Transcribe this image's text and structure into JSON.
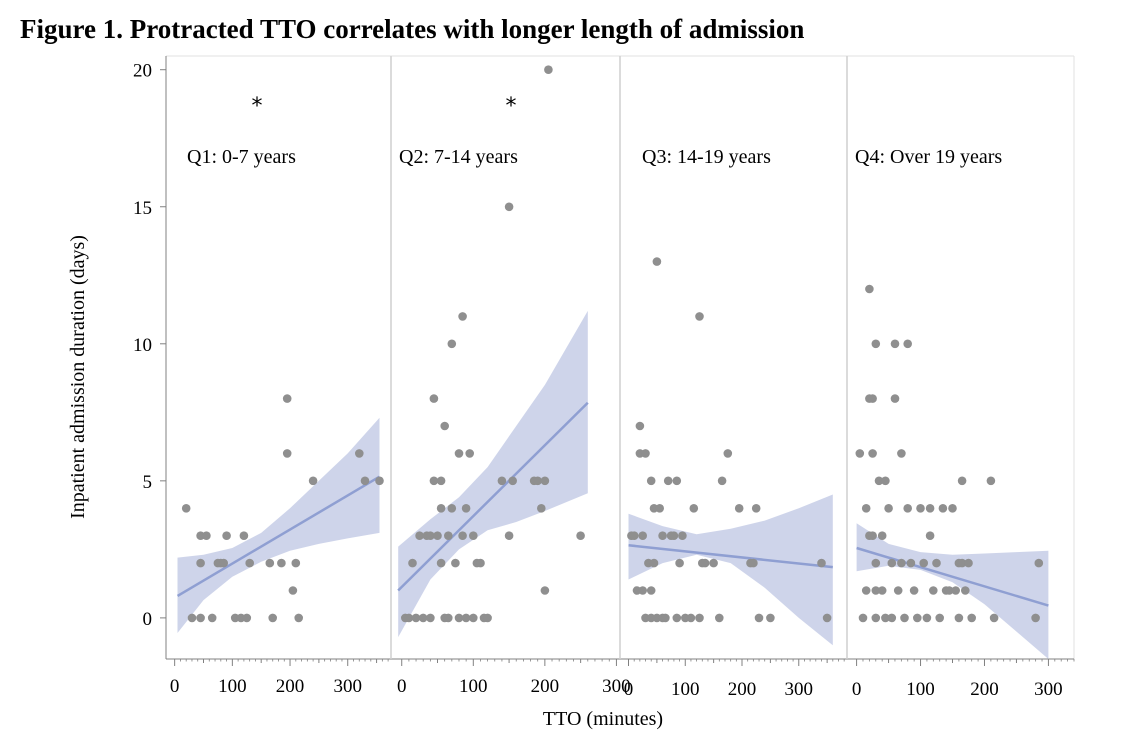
{
  "figure": {
    "title": "Figure 1. Protracted TTO correlates with longer length of admission"
  },
  "colors": {
    "point": "#8f8f8f",
    "fit_line": "#8f9fd2",
    "ci_band": "#c5cce6",
    "divider": "#cfcfcf",
    "axis": "#808080"
  },
  "chart_data": {
    "type": "scatter",
    "xlabel": "TTO (minutes)",
    "ylabel": "Inpatient admission duration (days)",
    "ylim": [
      -1.5,
      20.5
    ],
    "yticks": [
      0,
      5,
      10,
      15,
      20
    ],
    "grid": false,
    "panels": [
      {
        "label": "Q1: 0-7 years",
        "significance": "*",
        "xlim": [
          -15,
          375
        ],
        "xticks": [
          0,
          100,
          200,
          300
        ],
        "fit": {
          "x": [
            5,
            355
          ],
          "y": [
            0.8,
            5.15
          ]
        },
        "ci": {
          "x": [
            5,
            50,
            100,
            150,
            200,
            250,
            300,
            355
          ],
          "lower": [
            -0.55,
            0.65,
            1.5,
            2.05,
            2.45,
            2.7,
            2.9,
            3.1
          ],
          "upper": [
            2.2,
            2.3,
            2.55,
            3.1,
            4.0,
            5.0,
            6.0,
            7.3
          ]
        },
        "points": [
          [
            20,
            4
          ],
          [
            30,
            0
          ],
          [
            45,
            2
          ],
          [
            45,
            0
          ],
          [
            45,
            3
          ],
          [
            55,
            3
          ],
          [
            65,
            0
          ],
          [
            75,
            2
          ],
          [
            80,
            2
          ],
          [
            85,
            2
          ],
          [
            90,
            3
          ],
          [
            105,
            0
          ],
          [
            115,
            0
          ],
          [
            120,
            3
          ],
          [
            125,
            0
          ],
          [
            130,
            2
          ],
          [
            165,
            2
          ],
          [
            170,
            0
          ],
          [
            185,
            2
          ],
          [
            195,
            8
          ],
          [
            195,
            6
          ],
          [
            205,
            1
          ],
          [
            210,
            2
          ],
          [
            215,
            0
          ],
          [
            240,
            5
          ],
          [
            320,
            6
          ],
          [
            330,
            5
          ],
          [
            355,
            5
          ]
        ]
      },
      {
        "label": "Q2: 7-14 years",
        "significance": "*",
        "xlim": [
          -15,
          305
        ],
        "xticks": [
          0,
          100,
          200,
          300
        ],
        "fit": {
          "x": [
            -5,
            260
          ],
          "y": [
            1.0,
            7.85
          ]
        },
        "ci": {
          "x": [
            -5,
            40,
            80,
            120,
            160,
            200,
            260
          ],
          "lower": [
            -0.7,
            1.4,
            2.5,
            3.2,
            3.5,
            3.9,
            4.55
          ],
          "upper": [
            2.6,
            3.6,
            4.4,
            5.5,
            7.0,
            8.5,
            11.2
          ]
        },
        "points": [
          [
            5,
            0
          ],
          [
            10,
            0
          ],
          [
            15,
            2
          ],
          [
            20,
            0
          ],
          [
            25,
            3
          ],
          [
            30,
            0
          ],
          [
            35,
            3
          ],
          [
            40,
            3
          ],
          [
            45,
            5
          ],
          [
            50,
            3
          ],
          [
            40,
            0
          ],
          [
            45,
            8
          ],
          [
            55,
            5
          ],
          [
            60,
            0
          ],
          [
            55,
            4
          ],
          [
            55,
            2
          ],
          [
            60,
            7
          ],
          [
            65,
            3
          ],
          [
            65,
            0
          ],
          [
            70,
            10
          ],
          [
            70,
            4
          ],
          [
            75,
            2
          ],
          [
            80,
            0
          ],
          [
            80,
            6
          ],
          [
            85,
            11
          ],
          [
            85,
            3
          ],
          [
            90,
            0
          ],
          [
            90,
            4
          ],
          [
            95,
            6
          ],
          [
            100,
            3
          ],
          [
            100,
            0
          ],
          [
            105,
            2
          ],
          [
            110,
            2
          ],
          [
            115,
            0
          ],
          [
            120,
            0
          ],
          [
            140,
            5
          ],
          [
            150,
            3
          ],
          [
            150,
            15
          ],
          [
            155,
            5
          ],
          [
            185,
            5
          ],
          [
            190,
            5
          ],
          [
            195,
            4
          ],
          [
            200,
            1
          ],
          [
            200,
            5
          ],
          [
            205,
            20
          ],
          [
            250,
            3
          ]
        ]
      },
      {
        "label": "Q3: 14-19 years",
        "significance": "",
        "xlim": [
          -15,
          385
        ],
        "xticks": [
          0,
          100,
          200,
          300
        ],
        "fit": {
          "x": [
            0,
            360
          ],
          "y": [
            2.65,
            1.85
          ]
        },
        "ci": {
          "x": [
            0,
            60,
            120,
            180,
            240,
            300,
            360
          ],
          "lower": [
            1.4,
            2.0,
            2.3,
            2.0,
            1.1,
            0.0,
            -1.0
          ],
          "upper": [
            3.8,
            3.35,
            3.05,
            3.25,
            3.55,
            4.0,
            4.5
          ]
        },
        "points": [
          [
            5,
            3
          ],
          [
            10,
            3
          ],
          [
            15,
            1
          ],
          [
            20,
            7
          ],
          [
            20,
            6
          ],
          [
            25,
            1
          ],
          [
            25,
            3
          ],
          [
            30,
            0
          ],
          [
            30,
            6
          ],
          [
            35,
            2
          ],
          [
            40,
            5
          ],
          [
            40,
            1
          ],
          [
            40,
            0
          ],
          [
            45,
            2
          ],
          [
            45,
            4
          ],
          [
            50,
            0
          ],
          [
            50,
            13
          ],
          [
            55,
            4
          ],
          [
            60,
            0
          ],
          [
            60,
            3
          ],
          [
            65,
            0
          ],
          [
            70,
            5
          ],
          [
            75,
            3
          ],
          [
            80,
            3
          ],
          [
            85,
            0
          ],
          [
            85,
            5
          ],
          [
            90,
            2
          ],
          [
            95,
            3
          ],
          [
            100,
            0
          ],
          [
            110,
            0
          ],
          [
            115,
            4
          ],
          [
            125,
            0
          ],
          [
            125,
            11
          ],
          [
            130,
            2
          ],
          [
            135,
            2
          ],
          [
            150,
            2
          ],
          [
            160,
            0
          ],
          [
            165,
            5
          ],
          [
            175,
            6
          ],
          [
            195,
            4
          ],
          [
            215,
            2
          ],
          [
            220,
            2
          ],
          [
            225,
            4
          ],
          [
            230,
            0
          ],
          [
            250,
            0
          ],
          [
            340,
            2
          ],
          [
            350,
            0
          ]
        ]
      },
      {
        "label": "Q4: Over 19 years",
        "significance": "",
        "xlim": [
          -15,
          340
        ],
        "xticks": [
          0,
          100,
          200,
          300
        ],
        "fit": {
          "x": [
            0,
            300
          ],
          "y": [
            2.55,
            0.45
          ]
        },
        "ci": {
          "x": [
            0,
            50,
            100,
            150,
            200,
            250,
            300
          ],
          "lower": [
            1.7,
            1.9,
            1.75,
            1.3,
            0.5,
            -0.5,
            -1.5
          ],
          "upper": [
            3.45,
            2.7,
            2.4,
            2.3,
            2.35,
            2.4,
            2.45
          ]
        },
        "points": [
          [
            5,
            6
          ],
          [
            10,
            0
          ],
          [
            15,
            4
          ],
          [
            15,
            1
          ],
          [
            20,
            12
          ],
          [
            20,
            3
          ],
          [
            20,
            8
          ],
          [
            25,
            8
          ],
          [
            25,
            6
          ],
          [
            25,
            3
          ],
          [
            30,
            10
          ],
          [
            30,
            2
          ],
          [
            30,
            1
          ],
          [
            30,
            0
          ],
          [
            35,
            5
          ],
          [
            40,
            3
          ],
          [
            40,
            1
          ],
          [
            45,
            5
          ],
          [
            45,
            0
          ],
          [
            50,
            4
          ],
          [
            55,
            2
          ],
          [
            55,
            0
          ],
          [
            60,
            10
          ],
          [
            60,
            8
          ],
          [
            65,
            1
          ],
          [
            70,
            6
          ],
          [
            70,
            2
          ],
          [
            75,
            0
          ],
          [
            80,
            10
          ],
          [
            80,
            4
          ],
          [
            85,
            2
          ],
          [
            90,
            1
          ],
          [
            95,
            0
          ],
          [
            100,
            4
          ],
          [
            105,
            2
          ],
          [
            110,
            0
          ],
          [
            115,
            4
          ],
          [
            115,
            3
          ],
          [
            120,
            1
          ],
          [
            125,
            2
          ],
          [
            130,
            0
          ],
          [
            135,
            4
          ],
          [
            140,
            1
          ],
          [
            145,
            1
          ],
          [
            150,
            4
          ],
          [
            155,
            1
          ],
          [
            160,
            2
          ],
          [
            160,
            0
          ],
          [
            165,
            2
          ],
          [
            165,
            5
          ],
          [
            170,
            1
          ],
          [
            175,
            2
          ],
          [
            180,
            0
          ],
          [
            210,
            5
          ],
          [
            215,
            0
          ],
          [
            280,
            0
          ],
          [
            285,
            2
          ]
        ]
      }
    ]
  }
}
